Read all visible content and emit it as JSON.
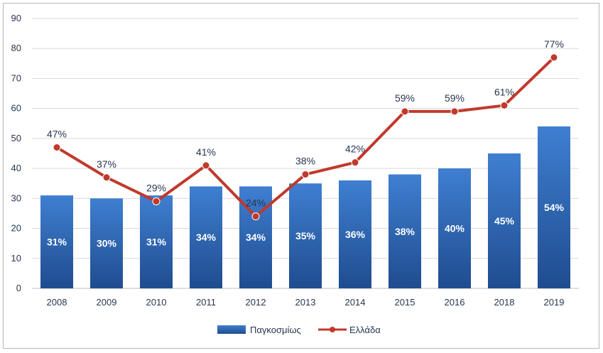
{
  "chart_data": {
    "type": "bar",
    "categories": [
      "2008",
      "2009",
      "2010",
      "2011",
      "2012",
      "2013",
      "2014",
      "2015",
      "2016",
      "2018",
      "2019"
    ],
    "series": [
      {
        "name": "Παγκοσμίως",
        "type": "bar",
        "values": [
          31,
          30,
          31,
          34,
          34,
          35,
          36,
          38,
          40,
          45,
          54
        ],
        "labels": [
          "31%",
          "30%",
          "31%",
          "34%",
          "34%",
          "35%",
          "36%",
          "38%",
          "40%",
          "45%",
          "54%"
        ]
      },
      {
        "name": "Ελλάδα",
        "type": "line",
        "values": [
          47,
          37,
          29,
          41,
          24,
          38,
          42,
          59,
          59,
          61,
          77
        ],
        "labels": [
          "47%",
          "37%",
          "29%",
          "41%",
          "24%",
          "38%",
          "42%",
          "59%",
          "59%",
          "61%",
          "77%"
        ]
      }
    ],
    "title": "",
    "xlabel": "",
    "ylabel": "",
    "ylim": [
      0,
      90
    ],
    "yticks": [
      0,
      10,
      20,
      30,
      40,
      50,
      60,
      70,
      80,
      90
    ],
    "grid": true,
    "legend": "bottom",
    "colors": {
      "bar_top": "#3f7fd1",
      "bar_bottom": "#1f4c8f",
      "line": "#c0392b",
      "marker": "#c0392b",
      "grid": "#d9d9d9",
      "text": "#26364f"
    }
  }
}
